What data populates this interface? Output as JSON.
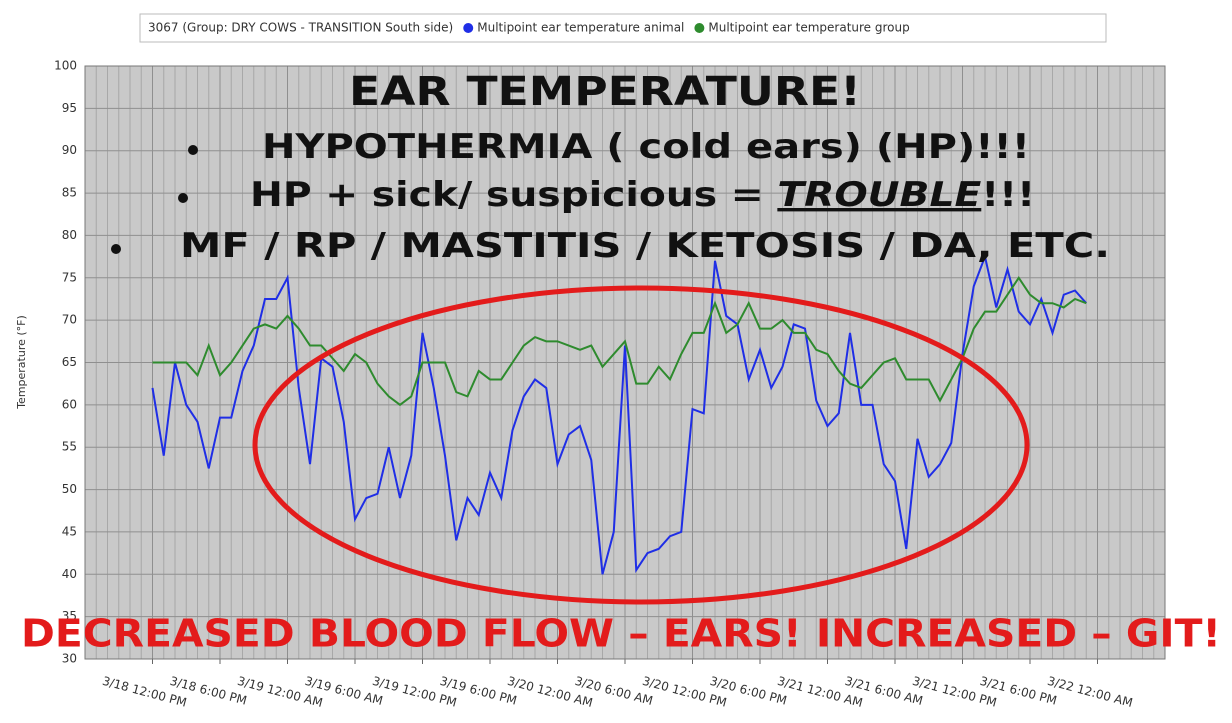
{
  "chart_data": {
    "type": "line",
    "legend_title": "3067 (Group: DRY COWS - TRANSITION South side)",
    "ylabel": "Temperature (°F)",
    "ylim": [
      30,
      100
    ],
    "yticks": [
      30,
      35,
      40,
      45,
      50,
      55,
      60,
      65,
      70,
      75,
      80,
      85,
      90,
      95,
      100
    ],
    "xlim": [
      -6,
      90
    ],
    "xticks": [
      {
        "value": 0,
        "label": "3/18 12:00 PM"
      },
      {
        "value": 6,
        "label": "3/18 6:00 PM"
      },
      {
        "value": 12,
        "label": "3/19 12:00 AM"
      },
      {
        "value": 18,
        "label": "3/19 6:00 AM"
      },
      {
        "value": 24,
        "label": "3/19 12:00 PM"
      },
      {
        "value": 30,
        "label": "3/19 6:00 PM"
      },
      {
        "value": 36,
        "label": "3/20 12:00 AM"
      },
      {
        "value": 42,
        "label": "3/20 6:00 AM"
      },
      {
        "value": 48,
        "label": "3/20 12:00 PM"
      },
      {
        "value": 54,
        "label": "3/20 6:00 PM"
      },
      {
        "value": 60,
        "label": "3/21 12:00 AM"
      },
      {
        "value": 66,
        "label": "3/21 6:00 AM"
      },
      {
        "value": 72,
        "label": "3/21 12:00 PM"
      },
      {
        "value": 78,
        "label": "3/21 6:00 PM"
      },
      {
        "value": 84,
        "label": "3/22 12:00 AM"
      }
    ],
    "grid": true,
    "x": [
      0,
      1,
      2,
      3,
      4,
      5,
      6,
      7,
      8,
      9,
      10,
      11,
      12,
      13,
      14,
      15,
      16,
      17,
      18,
      19,
      20,
      21,
      22,
      23,
      24,
      25,
      26,
      27,
      28,
      29,
      30,
      31,
      32,
      33,
      34,
      35,
      36,
      37,
      38,
      39,
      40,
      41,
      42,
      43,
      44,
      45,
      46,
      47,
      48,
      49,
      50,
      51,
      52,
      53,
      54,
      55,
      56,
      57,
      58,
      59,
      60,
      61,
      62,
      63,
      64,
      65,
      66,
      67,
      68,
      69,
      70,
      71,
      72,
      73,
      74,
      75,
      76,
      77,
      78,
      79,
      80,
      81,
      82,
      83
    ],
    "series": [
      {
        "name": "Multipoint ear temperature animal",
        "color": "#1f2ee6",
        "values": [
          62,
          54,
          65,
          60,
          58,
          52.5,
          58.5,
          58.5,
          64,
          67,
          72.5,
          72.5,
          75,
          62,
          53,
          65.5,
          64.5,
          58,
          46.5,
          49,
          49.5,
          55,
          49,
          54,
          68.5,
          62,
          54,
          44,
          49,
          47,
          52,
          49,
          57,
          61,
          63,
          62,
          53,
          56.5,
          57.5,
          53.5,
          40,
          45,
          67,
          40.5,
          42.5,
          43,
          44.5,
          45,
          59.5,
          59,
          77,
          70.5,
          69.5,
          63,
          66.5,
          62,
          64.5,
          69.5,
          69,
          60.5,
          57.5,
          59,
          68.5,
          60,
          60,
          53,
          51,
          43,
          56,
          51.5,
          53,
          55.5,
          66,
          74,
          77.5,
          71.5,
          76,
          71,
          69.5,
          72.5,
          68.5,
          73,
          73.5,
          72
        ]
      },
      {
        "name": "Multipoint ear temperature group",
        "color": "#2e8b2e",
        "values": [
          65,
          65,
          65,
          65,
          63.5,
          67,
          63.5,
          65,
          67,
          69,
          69.5,
          69,
          70.5,
          69,
          67,
          67,
          65.5,
          64,
          66,
          65,
          62.5,
          61,
          60,
          61,
          65,
          65,
          65,
          61.5,
          61,
          64,
          63,
          63,
          65,
          67,
          68,
          67.5,
          67.5,
          67,
          66.5,
          67,
          64.5,
          66,
          67.5,
          62.5,
          62.5,
          64.5,
          63,
          66,
          68.5,
          68.5,
          72,
          68.5,
          69.5,
          72,
          69,
          69,
          70,
          68.5,
          68.5,
          66.5,
          66,
          64,
          62.5,
          62,
          63.5,
          65,
          65.5,
          63,
          63,
          63,
          60.5,
          63,
          65.5,
          69,
          71,
          71,
          73,
          75,
          73,
          72,
          72,
          71.5,
          72.5,
          72
        ]
      }
    ],
    "annotations": {
      "heading": "EAR TEMPERATURE!",
      "bullets": [
        {
          "parts": [
            "HYPOTHERMIA ( cold ears) (HP)!!!"
          ]
        },
        {
          "parts": [
            "HP + sick/ suspicious = ",
            "TROUBLE",
            "!!!"
          ]
        },
        {
          "parts": [
            "MF /  RP / MASTITIS / KETOSIS / DA, ETC."
          ]
        }
      ],
      "footer": "DECREASED BLOOD FLOW – EARS!  INCREASED – GIT!"
    }
  }
}
